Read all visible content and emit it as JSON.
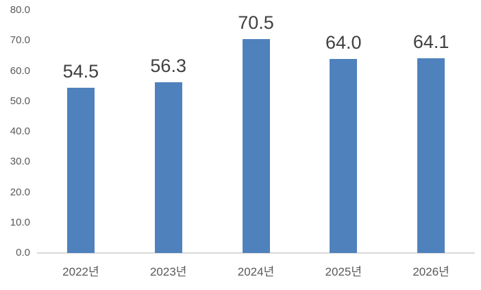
{
  "chart_data": {
    "type": "bar",
    "title": "",
    "xlabel": "",
    "ylabel": "",
    "categories": [
      "2022년",
      "2023년",
      "2024년",
      "2025년",
      "2026년"
    ],
    "values": [
      54.5,
      56.3,
      70.5,
      64.0,
      64.1
    ],
    "data_labels": [
      "54.5",
      "56.3",
      "70.5",
      "64.0",
      "64.1"
    ],
    "ylim": [
      0,
      80
    ],
    "y_ticks": [
      "0.0",
      "10.0",
      "20.0",
      "30.0",
      "40.0",
      "50.0",
      "60.0",
      "70.0",
      "80.0"
    ],
    "grid": false,
    "legend": false,
    "colors": {
      "bar": "#4f81bd",
      "axis_line": "#d9d9d9",
      "tick_text": "#595959",
      "value_text": "#404040",
      "background": "#ffffff"
    }
  }
}
